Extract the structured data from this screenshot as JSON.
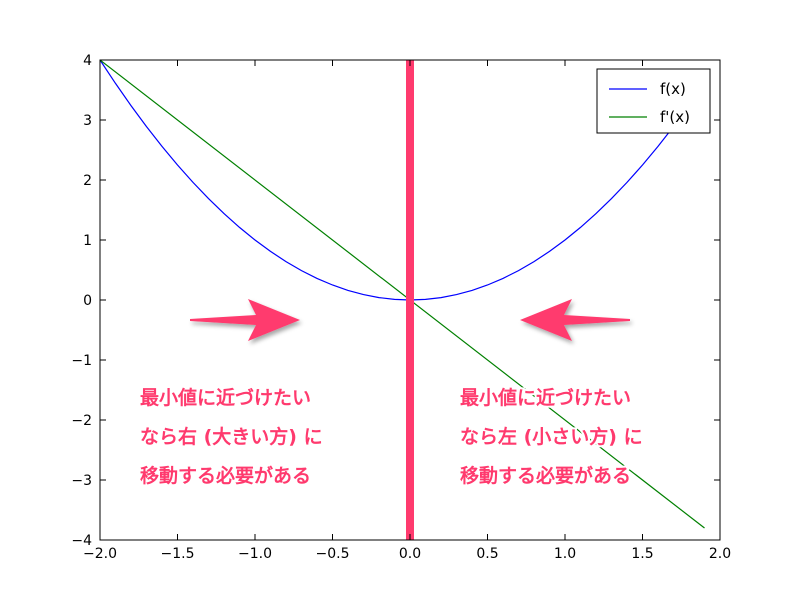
{
  "chart_data": {
    "type": "line",
    "title": "",
    "xlabel": "",
    "ylabel": "",
    "xlim": [
      -2.0,
      2.0
    ],
    "ylim": [
      -4,
      4
    ],
    "x_ticks": [
      -2.0,
      -1.5,
      -1.0,
      -0.5,
      0.0,
      0.5,
      1.0,
      1.5,
      2.0
    ],
    "x_tick_labels": [
      "−2.0",
      "−1.5",
      "−1.0",
      "−0.5",
      "0.0",
      "0.5",
      "1.0",
      "1.5",
      "2.0"
    ],
    "y_ticks": [
      4,
      3,
      2,
      1,
      0,
      -1,
      -2,
      -3,
      -4
    ],
    "y_tick_labels": [
      "4",
      "3",
      "2",
      "1",
      "0",
      "−1",
      "−2",
      "−3",
      "−4"
    ],
    "grid": false,
    "legend_position": "top-right",
    "series": [
      {
        "name": "f(x)",
        "color": "#0000ff",
        "x": [
          -2.0,
          -1.9,
          -1.8,
          -1.7,
          -1.6,
          -1.5,
          -1.4,
          -1.3,
          -1.2,
          -1.1,
          -1.0,
          -0.9,
          -0.8,
          -0.7,
          -0.6,
          -0.5,
          -0.4,
          -0.3,
          -0.2,
          -0.1,
          0.0,
          0.1,
          0.2,
          0.3,
          0.4,
          0.5,
          0.6,
          0.7,
          0.8,
          0.9,
          1.0,
          1.1,
          1.2,
          1.3,
          1.4,
          1.5,
          1.6,
          1.7,
          1.8,
          1.9
        ],
        "y": [
          4.0,
          3.61,
          3.24,
          2.89,
          2.56,
          2.25,
          1.96,
          1.69,
          1.44,
          1.21,
          1.0,
          0.81,
          0.64,
          0.49,
          0.36,
          0.25,
          0.16,
          0.09,
          0.04,
          0.01,
          0.0,
          0.01,
          0.04,
          0.09,
          0.16,
          0.25,
          0.36,
          0.49,
          0.64,
          0.81,
          1.0,
          1.21,
          1.44,
          1.69,
          1.96,
          2.25,
          2.56,
          2.89,
          3.24,
          3.61
        ]
      },
      {
        "name": "f'(x)",
        "color": "#008000",
        "x": [
          -2.0,
          1.9
        ],
        "y": [
          4.0,
          -3.8
        ]
      }
    ],
    "vertical_marker": {
      "x": 0.0,
      "color": "#ff3a6e"
    },
    "annotations": [
      {
        "side": "left",
        "arrow_direction": "right",
        "lines": [
          "最小値に近づけたい",
          "なら右 (大きい方) に",
          "移動する必要がある"
        ]
      },
      {
        "side": "right",
        "arrow_direction": "left",
        "lines": [
          "最小値に近づけたい",
          "なら左 (小さい方) に",
          "移動する必要がある"
        ]
      }
    ],
    "annotation_color": "#ff3a6e"
  }
}
